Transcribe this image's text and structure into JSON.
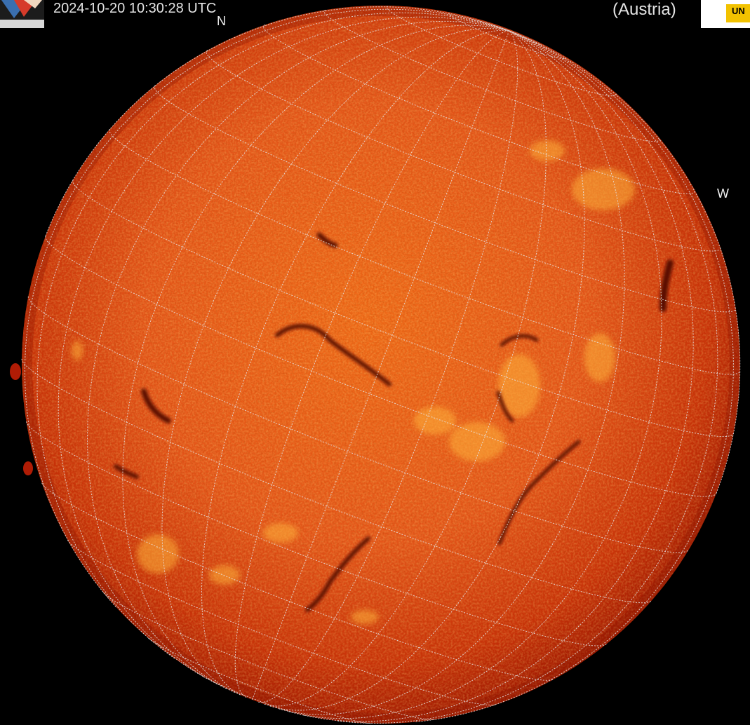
{
  "observation": {
    "timestamp": "2024-10-20 10:30:28 UTC",
    "station": "(Austria)"
  },
  "compass": {
    "north": "N",
    "west": "W"
  },
  "logos": {
    "right_logo_text": "UN"
  },
  "icons": {
    "left_logo": "observatory-logo-icon",
    "right_logo": "institution-logo-icon"
  },
  "colors": {
    "background": "#000000",
    "disk_center": "#ec6114",
    "disk_limb": "#a51b02",
    "grid": "#e6e6e6",
    "filament": "#5a0f04",
    "plage": "#ffb23a"
  }
}
